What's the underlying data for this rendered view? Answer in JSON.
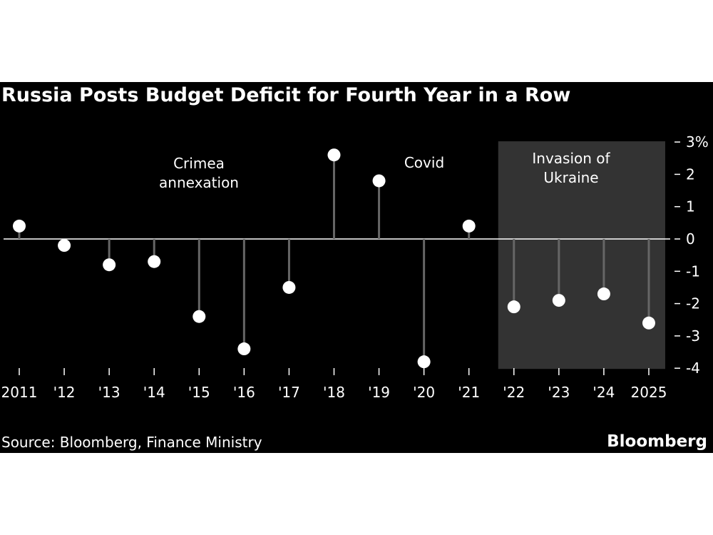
{
  "chart_data": {
    "type": "lollipop",
    "title": "Russia Posts Budget Deficit for Fourth Year in a Row",
    "categories": [
      "2011",
      "'12",
      "'13",
      "'14",
      "'15",
      "'16",
      "'17",
      "'18",
      "'19",
      "'20",
      "'21",
      "'22",
      "'23",
      "'24",
      "2025"
    ],
    "values": [
      0.4,
      -0.2,
      -0.8,
      -0.7,
      -2.4,
      -3.4,
      -1.5,
      2.6,
      1.8,
      -3.8,
      0.4,
      -2.1,
      -1.9,
      -1.7,
      -2.6
    ],
    "y_ticks": [
      3,
      2,
      1,
      0,
      -1,
      -2,
      -3,
      -4
    ],
    "y_tick_labels": [
      "3%",
      "2",
      "1",
      "0",
      "-1",
      "-2",
      "-3",
      "-4"
    ],
    "ylim": [
      -4,
      3
    ],
    "y_axis_side": "right",
    "annotations": [
      {
        "text_lines": [
          "Crimea",
          "annexation"
        ],
        "near": "'15"
      },
      {
        "text": "Covid",
        "near": "'20"
      },
      {
        "text_lines": [
          "Invasion of",
          "Ukraine"
        ],
        "shaded_from": "'22",
        "shaded_to": "2025"
      }
    ],
    "colors": {
      "background": "#000000",
      "points": "#ffffff",
      "stems": "#666666",
      "shade": "#333333",
      "zero_line": "#ffffff"
    }
  },
  "source": "Source: Bloomberg, Finance Ministry",
  "brand": "Bloomberg"
}
